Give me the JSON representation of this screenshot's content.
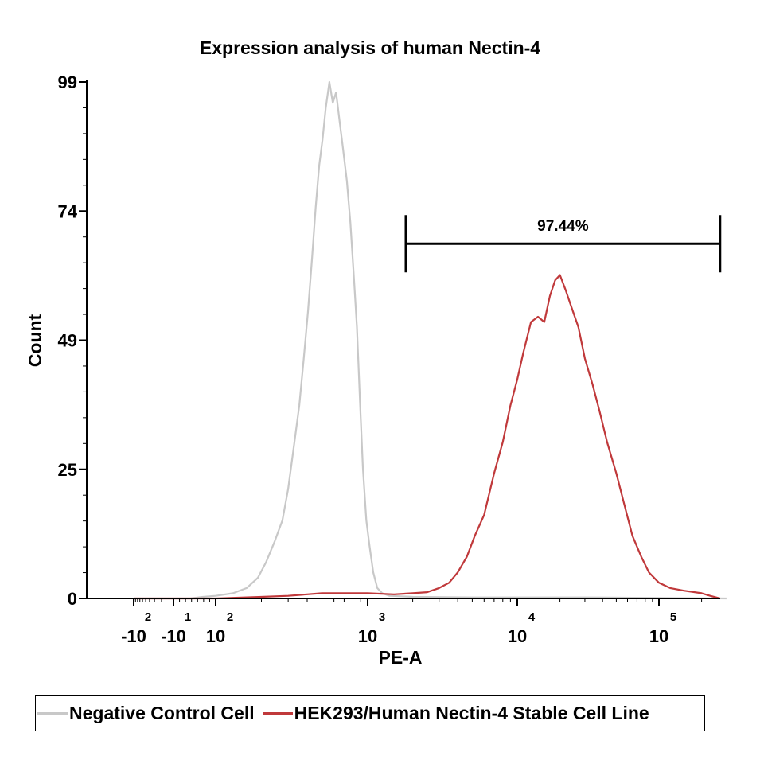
{
  "chart_data": {
    "type": "line",
    "subtype": "flow-cytometry-histogram",
    "title": "Expression analysis of human Nectin-4",
    "xlabel": "PE-A",
    "ylabel": "Count",
    "x_scale": "biexponential",
    "ylim": [
      0,
      99
    ],
    "y_ticks": [
      "0",
      "25",
      "49",
      "74",
      "99"
    ],
    "x_ticks": [
      {
        "base": "-10",
        "exp": "2",
        "value": -100
      },
      {
        "base": "-10",
        "exp": "1",
        "value": -10
      },
      {
        "base": "10",
        "exp": "2",
        "value": 100
      },
      {
        "base": "10",
        "exp": "3",
        "value": 1000
      },
      {
        "base": "10",
        "exp": "4",
        "value": 10000
      },
      {
        "base": "10",
        "exp": "5",
        "value": 100000
      }
    ],
    "grid": false,
    "legend_position": "bottom",
    "gate": {
      "label": "97.44%",
      "x_start": 1800,
      "x_end": 270000,
      "y": 68
    },
    "series": [
      {
        "name": "Negative Control Cell",
        "color": "#c8c8c8",
        "points": [
          [
            -100,
            0
          ],
          [
            40,
            0
          ],
          [
            70,
            0.3
          ],
          [
            100,
            0.5
          ],
          [
            130,
            1
          ],
          [
            160,
            2
          ],
          [
            190,
            4
          ],
          [
            215,
            7
          ],
          [
            245,
            11
          ],
          [
            275,
            15
          ],
          [
            300,
            21
          ],
          [
            330,
            30
          ],
          [
            355,
            37
          ],
          [
            380,
            46
          ],
          [
            405,
            55
          ],
          [
            430,
            65
          ],
          [
            455,
            75
          ],
          [
            480,
            83
          ],
          [
            505,
            88
          ],
          [
            530,
            94
          ],
          [
            560,
            99
          ],
          [
            590,
            95
          ],
          [
            620,
            97
          ],
          [
            650,
            92
          ],
          [
            690,
            86
          ],
          [
            730,
            80
          ],
          [
            770,
            72
          ],
          [
            810,
            62
          ],
          [
            850,
            52
          ],
          [
            890,
            38
          ],
          [
            930,
            25
          ],
          [
            980,
            15
          ],
          [
            1030,
            10
          ],
          [
            1090,
            5
          ],
          [
            1160,
            2
          ],
          [
            1250,
            1
          ],
          [
            1400,
            0.5
          ],
          [
            2000,
            0.3
          ],
          [
            5000,
            0.2
          ],
          [
            10000,
            0.2
          ],
          [
            30000,
            0.2
          ],
          [
            100000,
            0.1
          ],
          [
            300000,
            0
          ]
        ]
      },
      {
        "name": "HEK293/Human Nectin-4 Stable Cell Line",
        "color": "#c0393b",
        "points": [
          [
            -100,
            0
          ],
          [
            100,
            0
          ],
          [
            200,
            0.3
          ],
          [
            300,
            0.5
          ],
          [
            400,
            0.8
          ],
          [
            500,
            1
          ],
          [
            700,
            1
          ],
          [
            1000,
            1
          ],
          [
            1500,
            0.8
          ],
          [
            2000,
            1
          ],
          [
            2500,
            1.2
          ],
          [
            3000,
            2
          ],
          [
            3500,
            3
          ],
          [
            4000,
            5
          ],
          [
            4600,
            8
          ],
          [
            5200,
            12
          ],
          [
            6000,
            16
          ],
          [
            7000,
            24
          ],
          [
            8000,
            30
          ],
          [
            9000,
            37
          ],
          [
            10000,
            42
          ],
          [
            11000,
            47
          ],
          [
            12500,
            53
          ],
          [
            14000,
            54
          ],
          [
            15500,
            53
          ],
          [
            17000,
            58
          ],
          [
            18500,
            61
          ],
          [
            20000,
            62
          ],
          [
            22000,
            59
          ],
          [
            24000,
            56
          ],
          [
            27000,
            52
          ],
          [
            30000,
            46
          ],
          [
            34000,
            41
          ],
          [
            38000,
            36
          ],
          [
            43000,
            30
          ],
          [
            50000,
            24
          ],
          [
            57000,
            18
          ],
          [
            65000,
            12
          ],
          [
            75000,
            8
          ],
          [
            85000,
            5
          ],
          [
            100000,
            3
          ],
          [
            120000,
            2
          ],
          [
            150000,
            1.5
          ],
          [
            200000,
            1
          ],
          [
            230000,
            0.5
          ],
          [
            270000,
            0
          ]
        ]
      }
    ]
  }
}
